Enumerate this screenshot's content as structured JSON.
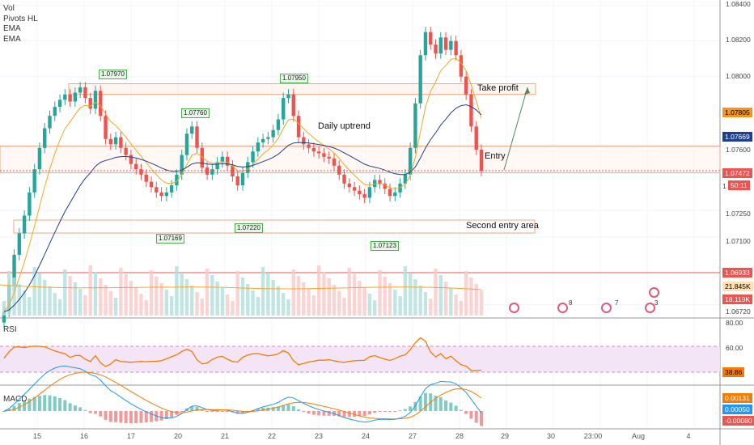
{
  "indicators": [
    "Vol",
    "Pivots HL",
    "EMA",
    "EMA"
  ],
  "panes": {
    "rsi_label": "RSI",
    "macd_label": "MACD"
  },
  "annotations": {
    "take_profit": "Take profit",
    "daily_uptrend": "Daily uptrend",
    "entry": "Entry",
    "second_entry_area": "Second entry area"
  },
  "pivots": [
    {
      "label": "1.07970",
      "price": 1.0797
    },
    {
      "label": "1.07760",
      "price": 1.0776
    },
    {
      "label": "1.07950",
      "price": 1.0795
    },
    {
      "label": "1.07169",
      "price": 1.07169
    },
    {
      "label": "1.07220",
      "price": 1.0722
    },
    {
      "label": "1.07123",
      "price": 1.07123
    }
  ],
  "price_axis_ticks": [
    "1.08400",
    "1.08200",
    "1.08000",
    "1.07600",
    "1.07250",
    "1.07100",
    "1.06720"
  ],
  "price_labels": [
    {
      "text": "1.07805",
      "bg": "#f7941d",
      "fg": "#000000"
    },
    {
      "text": "1.07669",
      "bg": "#1c3f94",
      "fg": "#ffffff"
    },
    {
      "text": "1.07472",
      "bg": "#ef5350",
      "fg": "#ffffff"
    },
    {
      "text": "50:11",
      "bg": "#ef5350",
      "fg": "#ffffff"
    },
    {
      "text": "1.06933",
      "bg": "#ef5350",
      "fg": "#ffffff"
    },
    {
      "text": "21.845K",
      "bg": "#ffe0b2",
      "fg": "#000000"
    },
    {
      "text": "18.119K",
      "bg": "#ef5350",
      "fg": "#ffffff"
    }
  ],
  "price_axis_partial": "1",
  "rsi_axis": {
    "ticks": [
      "80.00",
      "60.00"
    ],
    "value_label": "38.86",
    "value_bg": "#f57c00"
  },
  "macd_axis": {
    "labels": [
      {
        "text": "0.00131",
        "bg": "#f57c00",
        "fg": "#ffffff"
      },
      {
        "text": "0.00050",
        "bg": "#2196f3",
        "fg": "#ffffff"
      },
      {
        "text": "-0.00080",
        "bg": "#ef5350",
        "fg": "#ffffff"
      }
    ]
  },
  "x_ticks": [
    "15",
    "16",
    "17",
    "20",
    "21",
    "22",
    "23",
    "24",
    "27",
    "28",
    "29",
    "30",
    "23:00",
    "Aug",
    "4"
  ],
  "events": [
    {
      "count": ""
    },
    {
      "count": "8"
    },
    {
      "count": "7"
    },
    {
      "count": "3"
    },
    {
      "count": ""
    }
  ],
  "colors": {
    "up": "#26a69a",
    "down": "#ef5350",
    "ema_fast": "#f5a623",
    "ema_slow": "#1c3f94",
    "zone": "#f4a582",
    "rsi": "#f57c00",
    "rsi_band": "#f3e5f5",
    "macd_line": "#2196f3",
    "signal_line": "#f57c00"
  },
  "chart_data": {
    "type": "candlestick",
    "symbol_interval_note": "",
    "ylim": [
      1.0665,
      1.0843
    ],
    "closes": [
      1.0668,
      1.0683,
      1.07,
      1.0712,
      1.0722,
      1.0735,
      1.0748,
      1.076,
      1.0771,
      1.0778,
      1.0783,
      1.0787,
      1.079,
      1.0786,
      1.0791,
      1.0794,
      1.0788,
      1.0782,
      1.0792,
      1.0778,
      1.0765,
      1.0762,
      1.0766,
      1.076,
      1.0756,
      1.0751,
      1.0748,
      1.0745,
      1.0741,
      1.0738,
      1.0735,
      1.0733,
      1.0735,
      1.0739,
      1.0745,
      1.0756,
      1.0768,
      1.0772,
      1.076,
      1.0749,
      1.0745,
      1.0748,
      1.0752,
      1.0755,
      1.075,
      1.0744,
      1.0739,
      1.0746,
      1.0752,
      1.0758,
      1.0763,
      1.0765,
      1.0766,
      1.077,
      1.0776,
      1.0788,
      1.079,
      1.0778,
      1.0766,
      1.0762,
      1.076,
      1.0758,
      1.0757,
      1.0755,
      1.0754,
      1.075,
      1.0745,
      1.074,
      1.0738,
      1.0736,
      1.0734,
      1.0732,
      1.0738,
      1.0742,
      1.074,
      1.0737,
      1.0733,
      1.0735,
      1.074,
      1.0745,
      1.076,
      1.0785,
      1.0812,
      1.0825,
      1.0818,
      1.0813,
      1.0822,
      1.0815,
      1.082,
      1.0812,
      1.08,
      1.079,
      1.0772,
      1.0759,
      1.0747
    ],
    "ema_fast_label": "1.07805",
    "ema_slow_label": "1.07669",
    "last_price": 1.07472,
    "levels": {
      "take_profit_zone": [
        1.079,
        1.0796
      ],
      "entry_zone": [
        1.0746,
        1.0761
      ],
      "second_entry_zone": [
        1.0714,
        1.0718
      ],
      "red_line": 1.06933
    },
    "rsi_last": 38.86,
    "macd": {
      "macd": 0.00131,
      "signal": 0.0005,
      "hist": -0.0008
    }
  }
}
